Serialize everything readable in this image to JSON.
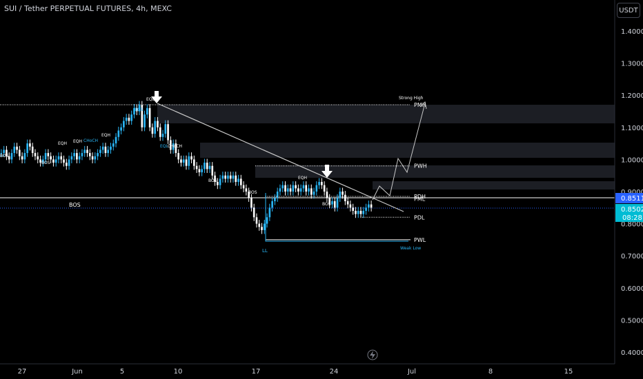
{
  "header": {
    "title": "SUI / Tether PERPETUAL FUTURES, 4h, MEXC",
    "currency_label": "USDT"
  },
  "colors": {
    "background": "#000000",
    "candle": "#29b6f6",
    "line": "#ffffff",
    "zone": "#1c1e24",
    "badge_last": "#2962ff",
    "badge_price": "#00bcd4"
  },
  "price_badges": {
    "last_price": "0.8511",
    "current_price": "0.8502",
    "countdown": "08:28"
  },
  "chart_data": {
    "type": "candlestick",
    "y_axis": {
      "ticks": [
        "1.4000",
        "1.3000",
        "1.2000",
        "1.1000",
        "1.0000",
        "0.9000",
        "0.8000",
        "0.7000",
        "0.6000",
        "0.5000",
        "0.4000"
      ],
      "ylim": [
        0.37,
        1.48
      ]
    },
    "x_axis": {
      "ticks": [
        "27",
        "Jun",
        "5",
        "10",
        "17",
        "24",
        "Jul",
        "8",
        "15"
      ]
    },
    "grid": false,
    "close_series": [
      1.02,
      1.03,
      1.01,
      1.0,
      1.02,
      1.04,
      1.03,
      1.01,
      1.0,
      1.02,
      1.05,
      1.04,
      1.02,
      1.01,
      1.0,
      0.99,
      1.0,
      1.02,
      1.01,
      1.0,
      0.99,
      1.0,
      1.01,
      1.0,
      0.99,
      0.98,
      1.0,
      1.01,
      1.02,
      1.0,
      1.01,
      1.02,
      1.03,
      1.02,
      1.01,
      1.0,
      1.01,
      1.02,
      1.03,
      1.04,
      1.02,
      1.03,
      1.04,
      1.05,
      1.07,
      1.09,
      1.1,
      1.12,
      1.13,
      1.12,
      1.14,
      1.16,
      1.15,
      1.17,
      1.1,
      1.14,
      1.16,
      1.1,
      1.08,
      1.12,
      1.1,
      1.07,
      1.08,
      1.11,
      1.06,
      1.03,
      1.05,
      1.02,
      1.0,
      0.99,
      1.0,
      0.98,
      1.01,
      1.0,
      0.98,
      0.97,
      0.96,
      0.97,
      0.99,
      0.97,
      0.98,
      0.95,
      0.93,
      0.92,
      0.94,
      0.95,
      0.94,
      0.95,
      0.94,
      0.95,
      0.93,
      0.94,
      0.92,
      0.91,
      0.9,
      0.88,
      0.85,
      0.82,
      0.8,
      0.79,
      0.78,
      0.8,
      0.82,
      0.85,
      0.87,
      0.88,
      0.9,
      0.91,
      0.92,
      0.9,
      0.91,
      0.9,
      0.92,
      0.91,
      0.9,
      0.91,
      0.92,
      0.9,
      0.91,
      0.89,
      0.9,
      0.92,
      0.93,
      0.92,
      0.9,
      0.88,
      0.86,
      0.87,
      0.85,
      0.88,
      0.9,
      0.89,
      0.87,
      0.86,
      0.85,
      0.84,
      0.83,
      0.84,
      0.83,
      0.84,
      0.85,
      0.86,
      0.85
    ],
    "projection": [
      [
        1.0,
        0.85
      ],
      [
        1.25,
        0.91
      ],
      [
        1.75,
        0.89
      ],
      [
        2.3,
        1.0
      ],
      [
        2.75,
        0.97
      ],
      [
        4.3,
        1.17
      ]
    ],
    "trendline": {
      "from": [
        1.0,
        1.17
      ],
      "to": [
        0.0,
        0.85
      ]
    },
    "levels": [
      {
        "label": "PWH",
        "price": 0.98
      },
      {
        "label": "PDH",
        "price": 0.885
      },
      {
        "label": "PML",
        "price": 0.878
      },
      {
        "label": "PDL",
        "price": 0.82
      },
      {
        "label": "PWL",
        "price": 0.75
      },
      {
        "label": "PMH",
        "price": 1.17
      }
    ],
    "annotations": [
      "EQL",
      "BOS",
      "EQH",
      "EQH",
      "CHoCH",
      "EQH",
      "BOS",
      "BOS",
      "EQL",
      "CHoCH",
      "BOS",
      "BOS",
      "EQH",
      "BOS",
      "BOS",
      "LL",
      "Strong High",
      "Weak Low"
    ]
  }
}
